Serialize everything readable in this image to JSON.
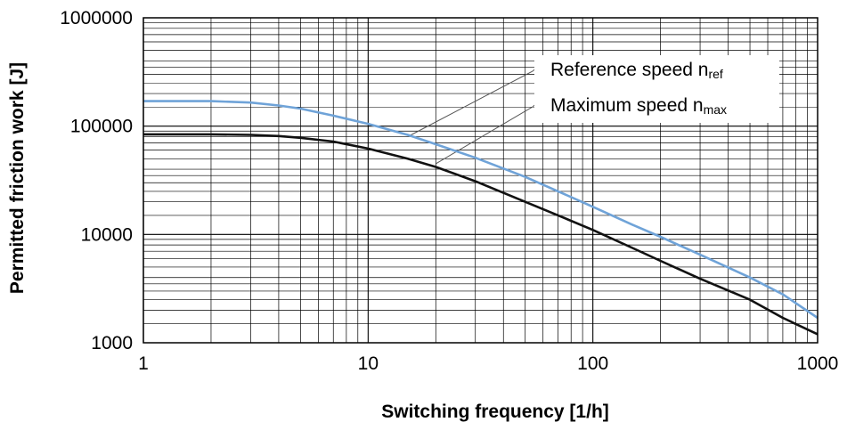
{
  "chart_data": {
    "type": "line",
    "xscale": "log",
    "yscale": "log",
    "xlim": [
      1,
      1000
    ],
    "ylim": [
      1000,
      1000000
    ],
    "grid": true,
    "xlabel": "Switching frequency [1/h]",
    "ylabel": "Permitted friction work [J]",
    "xticks": [
      "1",
      "10",
      "100",
      "1000"
    ],
    "yticks": [
      "1000",
      "10000",
      "100000",
      "1000000"
    ],
    "series": [
      {
        "name": "Reference speed n",
        "name_sub": "ref",
        "color": "#6fa3d8",
        "x": [
          1,
          2,
          3,
          4,
          5,
          7,
          10,
          15,
          20,
          30,
          50,
          70,
          100,
          150,
          200,
          300,
          500,
          700,
          1000
        ],
        "y": [
          170000,
          170000,
          165000,
          155000,
          145000,
          125000,
          105000,
          83000,
          68000,
          51000,
          34000,
          25000,
          18000,
          12300,
          9500,
          6500,
          4000,
          2800,
          1700
        ]
      },
      {
        "name": "Maximum speed n",
        "name_sub": "max",
        "color": "#111111",
        "x": [
          1,
          2,
          3,
          4,
          5,
          7,
          10,
          15,
          20,
          30,
          50,
          70,
          100,
          150,
          200,
          300,
          500,
          700,
          1000
        ],
        "y": [
          84000,
          84000,
          83000,
          81000,
          78000,
          72000,
          62000,
          50000,
          42000,
          31000,
          20000,
          15000,
          11000,
          7500,
          5700,
          3900,
          2500,
          1700,
          1200
        ]
      }
    ],
    "annotations": [
      {
        "series": 0,
        "leader_from": [
          15,
          80000
        ]
      },
      {
        "series": 1,
        "leader_from": [
          20,
          45000
        ]
      }
    ]
  }
}
